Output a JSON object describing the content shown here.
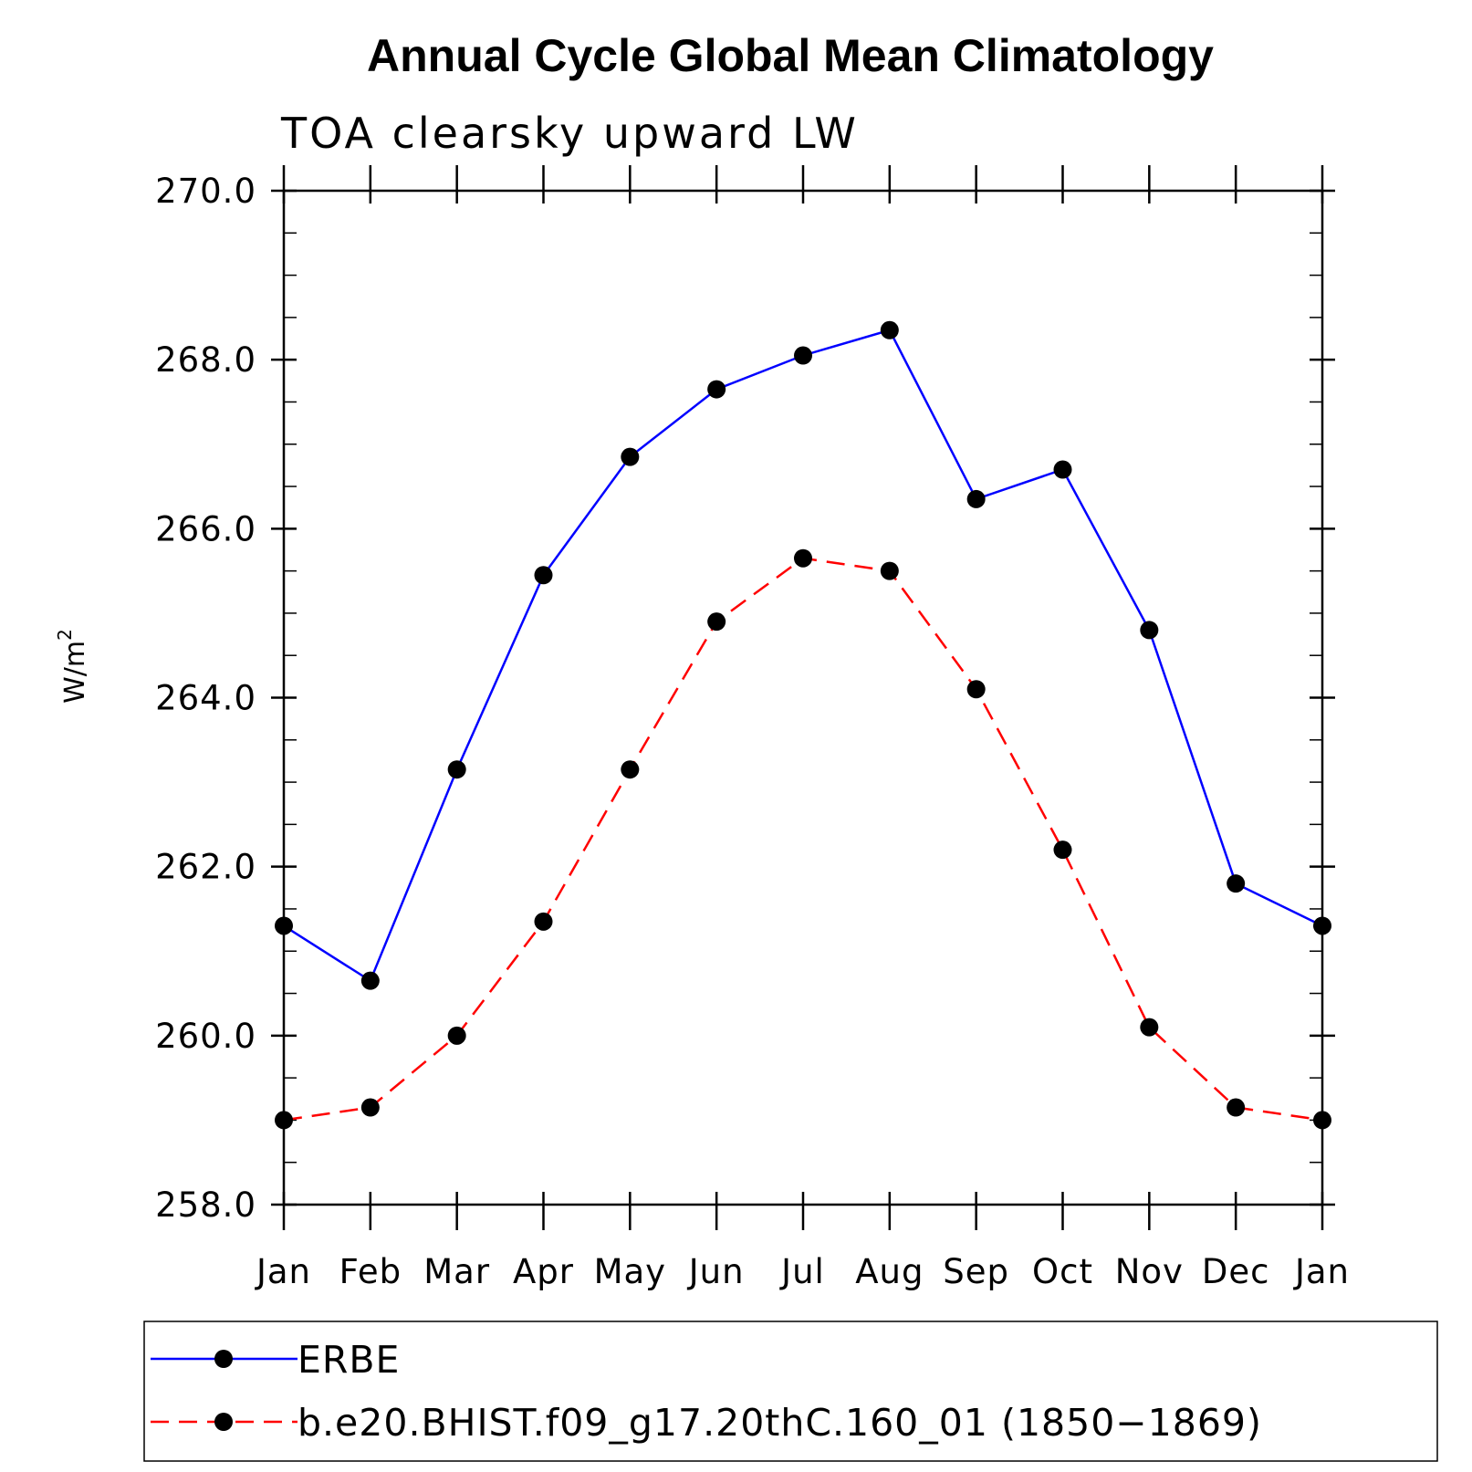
{
  "chart_data": {
    "type": "line",
    "title": "Annual Cycle Global Mean Climatology",
    "subtitle": "TOA clearsky upward LW",
    "ylabel": "W/m",
    "ylabel_superscript": "2",
    "xlabel": "",
    "ylim": [
      258.0,
      270.0
    ],
    "y_ticks": [
      "258.0",
      "260.0",
      "262.0",
      "264.0",
      "266.0",
      "268.0",
      "270.0"
    ],
    "y_tick_values": [
      258,
      260,
      262,
      264,
      266,
      268,
      270
    ],
    "categories": [
      "Jan",
      "Feb",
      "Mar",
      "Apr",
      "May",
      "Jun",
      "Jul",
      "Aug",
      "Sep",
      "Oct",
      "Nov",
      "Dec",
      "Jan"
    ],
    "grid": false,
    "legend_position": "bottom",
    "series": [
      {
        "name": "ERBE",
        "color": "#0000ff",
        "dashed": false,
        "values": [
          261.3,
          260.65,
          263.15,
          265.45,
          266.85,
          267.65,
          268.05,
          268.35,
          266.35,
          266.7,
          264.8,
          261.8,
          261.3
        ]
      },
      {
        "name": "b.e20.BHIST.f09_g17.20thC.160_01 (1850−1869)",
        "color": "#ff0000",
        "dashed": true,
        "values": [
          259.0,
          259.15,
          260.0,
          261.35,
          263.15,
          264.9,
          265.65,
          265.5,
          264.1,
          262.2,
          260.1,
          259.15,
          259.0
        ]
      }
    ]
  }
}
